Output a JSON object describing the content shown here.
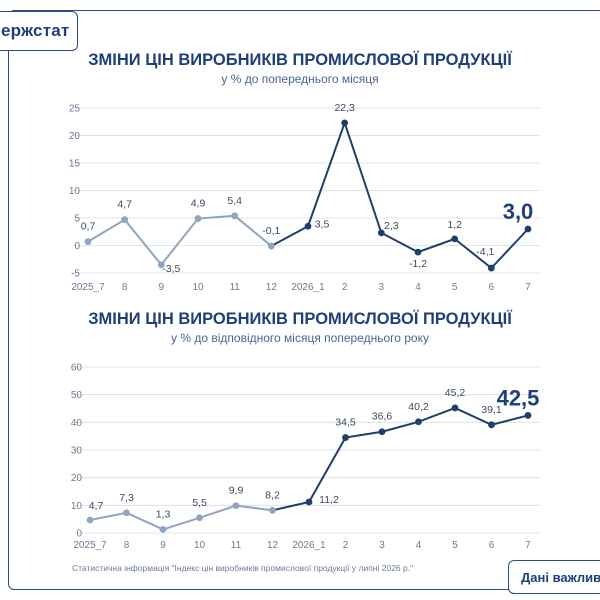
{
  "brand": {
    "logo_text": "ержстат"
  },
  "colors": {
    "dark": "#1f3f6b",
    "light": "#8fa5bf",
    "grid": "#d6dce5",
    "tick": "#6b7b93",
    "label": "#3b4a60",
    "highlight": "#1f3f78"
  },
  "chart_data": [
    {
      "type": "line",
      "title": "ЗМІНИ ЦІН ВИРОБНИКІВ ПРОМИСЛОВОЇ ПРОДУКЦІЇ",
      "subtitle": "у % до попереднього місяця",
      "categories": [
        "2025_7",
        "8",
        "9",
        "10",
        "11",
        "12",
        "2026_1",
        "2",
        "3",
        "4",
        "5",
        "6",
        "7"
      ],
      "values": [
        0.7,
        4.7,
        -3.5,
        4.9,
        5.4,
        -0.1,
        3.5,
        22.3,
        2.3,
        -1.2,
        1.2,
        -4.1,
        3.0
      ],
      "labels": [
        "0,7",
        "4,7",
        "-3,5",
        "4,9",
        "5,4",
        "-0,1",
        "3,5",
        "22,3",
        "2,3",
        "-1,2",
        "1,2",
        "-4,1",
        "3,0"
      ],
      "ylim": [
        -5,
        25
      ],
      "yticks": [
        -5,
        0,
        5,
        10,
        15,
        20,
        25
      ],
      "grid": true,
      "style_split_index": 5,
      "highlight_last": true
    },
    {
      "type": "line",
      "title": "ЗМІНИ ЦІН ВИРОБНИКІВ ПРОМИСЛОВОЇ ПРОДУКЦІЇ",
      "subtitle": "у % до відповідного місяця попереднього року",
      "categories": [
        "2025_7",
        "8",
        "9",
        "10",
        "11",
        "12",
        "2026_1",
        "2",
        "3",
        "4",
        "5",
        "6",
        "7"
      ],
      "values": [
        4.7,
        7.3,
        1.3,
        5.5,
        9.9,
        8.2,
        11.2,
        34.5,
        36.6,
        40.2,
        45.2,
        39.1,
        42.5
      ],
      "labels": [
        "4,7",
        "7,3",
        "1,3",
        "5,5",
        "9,9",
        "8,2",
        "11,2",
        "34,5",
        "36,6",
        "40,2",
        "45,2",
        "39,1",
        "42,5"
      ],
      "ylim": [
        0,
        60
      ],
      "yticks": [
        0,
        10,
        20,
        30,
        40,
        50,
        60
      ],
      "grid": true,
      "style_split_index": 5,
      "highlight_last": true
    }
  ],
  "footnote": "Статистична інформація \"Індекс цін виробників промислової продукції у липні 2026 р.\"",
  "badge_text": "Дані важливі"
}
